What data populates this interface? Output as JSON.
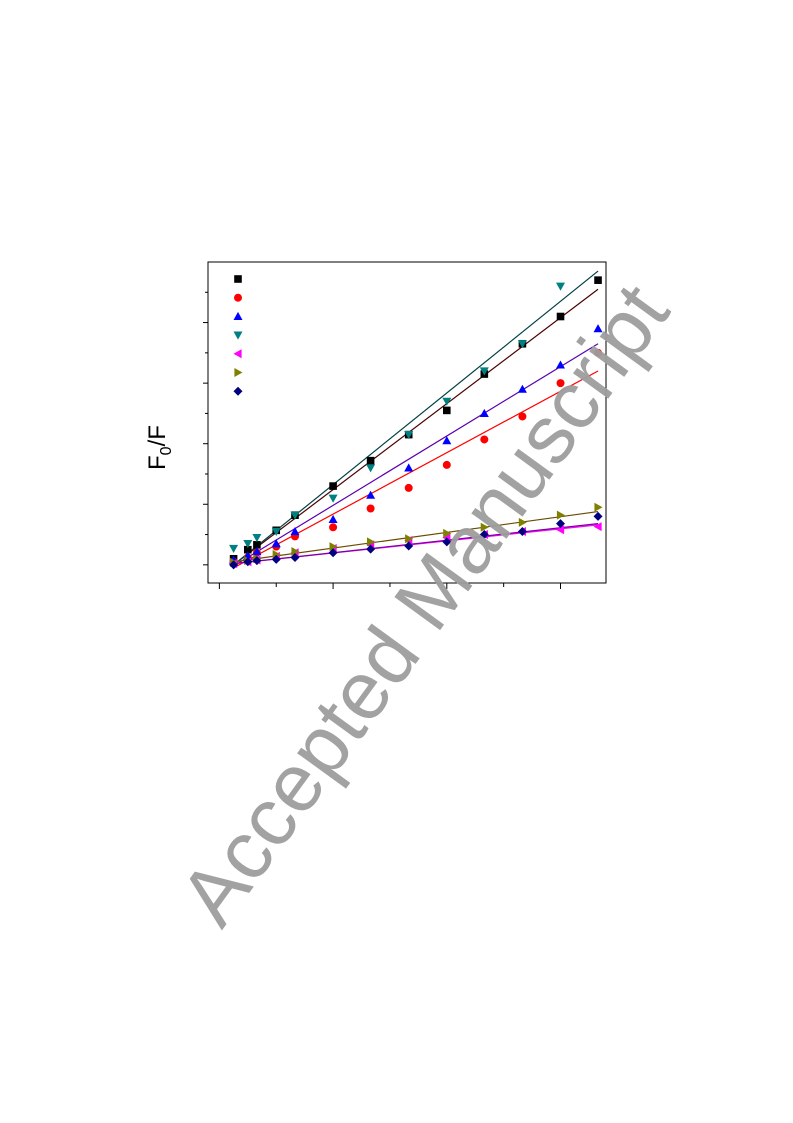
{
  "chart_data": {
    "type": "scatter",
    "title": "",
    "xlabel": "",
    "ylabel_main": "F",
    "ylabel_sub": "0",
    "ylabel_suffix": "/F",
    "xlim": [
      -0.2,
      6.8
    ],
    "ylim": [
      0.7,
      6.0
    ],
    "x_ticks_major": [
      0,
      2,
      4,
      6
    ],
    "x_ticks_minor": [
      1,
      3,
      5
    ],
    "y_ticks_major": [
      1,
      2,
      3,
      4,
      5
    ],
    "y_ticks_minor": [
      1.5,
      2.5,
      3.5,
      4.5,
      5.5
    ],
    "grid": false,
    "legend_position": "top-left",
    "series": [
      {
        "marker": "square",
        "color": "#000000",
        "fit_color": "#4a0000",
        "x": [
          0.25,
          0.5,
          0.66,
          1.0,
          1.33,
          2.0,
          2.66,
          3.33,
          4.0,
          4.66,
          5.33,
          6.0,
          6.66
        ],
        "y": [
          1.1,
          1.25,
          1.33,
          1.57,
          1.82,
          2.3,
          2.72,
          3.15,
          3.55,
          4.15,
          4.65,
          5.1,
          5.7
        ],
        "fit": [
          [
            0.25,
            1.0
          ],
          [
            6.66,
            5.55
          ]
        ]
      },
      {
        "marker": "circle",
        "color": "#ff0000",
        "fit_color": "#ff0000",
        "x": [
          0.25,
          0.5,
          0.66,
          1.0,
          1.33,
          2.0,
          2.66,
          3.33,
          4.0,
          4.66,
          5.33,
          6.0,
          6.66
        ],
        "y": [
          1.05,
          1.12,
          1.2,
          1.3,
          1.47,
          1.62,
          1.93,
          2.27,
          2.65,
          3.07,
          3.45,
          4.0,
          4.5
        ],
        "fit": [
          [
            0.25,
            0.95
          ],
          [
            6.66,
            4.2
          ]
        ]
      },
      {
        "marker": "triangle-up",
        "color": "#0000ff",
        "fit_color": "#5a00b0",
        "x": [
          0.25,
          0.5,
          0.66,
          1.0,
          1.33,
          2.0,
          2.66,
          3.33,
          4.0,
          4.66,
          5.33,
          6.0,
          6.66
        ],
        "y": [
          1.08,
          1.15,
          1.22,
          1.35,
          1.55,
          1.75,
          2.15,
          2.6,
          3.05,
          3.5,
          3.9,
          4.3,
          4.9
        ],
        "fit": [
          [
            0.25,
            0.98
          ],
          [
            6.66,
            4.65
          ]
        ]
      },
      {
        "marker": "triangle-down",
        "color": "#008080",
        "fit_color": "#004040",
        "x": [
          0.25,
          0.5,
          0.66,
          1.0,
          1.33,
          2.0,
          2.66,
          3.33,
          4.0,
          4.66,
          5.33,
          6.0
        ],
        "y": [
          1.27,
          1.35,
          1.45,
          1.55,
          1.82,
          2.1,
          2.6,
          3.15,
          3.7,
          4.2,
          4.65,
          5.6
        ],
        "fit": [
          [
            0.25,
            1.0
          ],
          [
            6.66,
            5.85
          ]
        ]
      },
      {
        "marker": "triangle-left",
        "color": "#ff00ff",
        "fit_color": "#ff00ff",
        "x": [
          0.25,
          0.5,
          0.66,
          1.0,
          1.33,
          2.0,
          2.66,
          3.33,
          4.0,
          4.66,
          5.33,
          6.0,
          6.66
        ],
        "y": [
          1.02,
          1.05,
          1.08,
          1.14,
          1.2,
          1.27,
          1.33,
          1.4,
          1.45,
          1.5,
          1.55,
          1.58,
          1.63
        ],
        "fit": [
          [
            0.25,
            1.02
          ],
          [
            6.66,
            1.66
          ]
        ]
      },
      {
        "marker": "triangle-right",
        "color": "#808000",
        "fit_color": "#6a4a00",
        "x": [
          0.25,
          0.5,
          0.66,
          1.0,
          1.33,
          2.0,
          2.66,
          3.33,
          4.0,
          4.66,
          5.33,
          6.0,
          6.66
        ],
        "y": [
          1.04,
          1.07,
          1.1,
          1.17,
          1.22,
          1.3,
          1.38,
          1.43,
          1.52,
          1.62,
          1.7,
          1.82,
          1.95
        ],
        "fit": [
          [
            0.25,
            1.05
          ],
          [
            6.66,
            1.88
          ]
        ]
      },
      {
        "marker": "diamond",
        "color": "#000080",
        "fit_color": "#7a00a0",
        "x": [
          0.25,
          0.5,
          0.66,
          1.0,
          1.33,
          2.0,
          2.66,
          3.33,
          4.0,
          4.66,
          5.33,
          6.0,
          6.66
        ],
        "y": [
          1.0,
          1.05,
          1.07,
          1.09,
          1.12,
          1.2,
          1.26,
          1.31,
          1.38,
          1.5,
          1.55,
          1.68,
          1.8
        ],
        "fit": [
          [
            0.25,
            1.02
          ],
          [
            6.66,
            1.68
          ]
        ]
      }
    ],
    "legend_entries": [
      {
        "marker": "square",
        "color": "#000000"
      },
      {
        "marker": "circle",
        "color": "#ff0000"
      },
      {
        "marker": "triangle-up",
        "color": "#0000ff"
      },
      {
        "marker": "triangle-down",
        "color": "#008080"
      },
      {
        "marker": "triangle-left",
        "color": "#ff00ff"
      },
      {
        "marker": "triangle-right",
        "color": "#808000"
      },
      {
        "marker": "diamond",
        "color": "#000080"
      }
    ]
  },
  "watermark": "Accepted Manuscript"
}
